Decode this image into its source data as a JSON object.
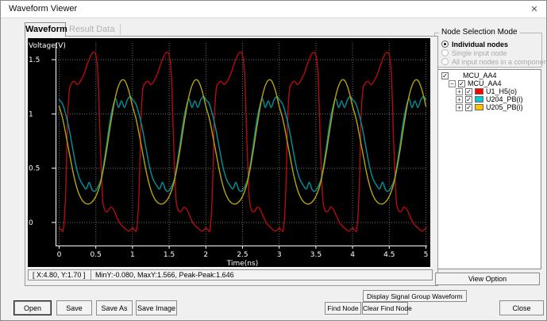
{
  "window": {
    "title": "Waveform Viewer",
    "close_icon": "✕"
  },
  "tabs": {
    "waveform": "Waveform",
    "result_data": "Result Data"
  },
  "chart_data": {
    "type": "line",
    "title": "",
    "xlabel": "Time(ns)",
    "ylabel": "Voltage(V)",
    "xlim": [
      0,
      5
    ],
    "ylim": [
      -0.2,
      1.66
    ],
    "xticks": [
      0,
      0.5,
      1,
      1.5,
      2,
      2.5,
      3,
      3.5,
      4,
      4.5,
      5
    ],
    "yticks": [
      0,
      0.5,
      1,
      1.5
    ],
    "bg_color": "#000000",
    "grid_color": "#6e6e6e",
    "axis_color": "#ffffff",
    "grid": "dotted",
    "legend_position": "none",
    "period_ns": 1,
    "periods": 5,
    "series": [
      {
        "name": "U1_H5(o)",
        "color": "#b40b10",
        "period_profile": [
          [
            0,
            -0.05
          ],
          [
            0.03,
            -0.07
          ],
          [
            0.06,
            -0.05
          ],
          [
            0.09,
            0.3
          ],
          [
            0.115,
            0.95
          ],
          [
            0.14,
            1.22
          ],
          [
            0.17,
            1.28
          ],
          [
            0.21,
            1.3
          ],
          [
            0.25,
            1.27
          ],
          [
            0.29,
            1.3
          ],
          [
            0.34,
            1.37
          ],
          [
            0.39,
            1.47
          ],
          [
            0.44,
            1.55
          ],
          [
            0.47,
            1.566
          ],
          [
            0.5,
            1.54
          ],
          [
            0.53,
            1.35
          ],
          [
            0.56,
            0.75
          ],
          [
            0.59,
            0.25
          ],
          [
            0.62,
            0.12
          ],
          [
            0.66,
            0.1
          ],
          [
            0.7,
            0.14
          ],
          [
            0.74,
            0.12
          ],
          [
            0.78,
            0.06
          ],
          [
            0.83,
            -0.01
          ],
          [
            0.89,
            -0.05
          ],
          [
            0.95,
            -0.08
          ],
          [
            1,
            -0.05
          ]
        ]
      },
      {
        "name": "U204_PB(i)",
        "color": "#00939b",
        "period_profile": [
          [
            0,
            1.13
          ],
          [
            0.04,
            1.1
          ],
          [
            0.08,
            1.02
          ],
          [
            0.13,
            0.88
          ],
          [
            0.18,
            0.7
          ],
          [
            0.23,
            0.52
          ],
          [
            0.28,
            0.4
          ],
          [
            0.33,
            0.34
          ],
          [
            0.37,
            0.31
          ],
          [
            0.41,
            0.37
          ],
          [
            0.45,
            0.3
          ],
          [
            0.49,
            0.29
          ],
          [
            0.53,
            0.33
          ],
          [
            0.57,
            0.4
          ],
          [
            0.61,
            0.55
          ],
          [
            0.65,
            0.73
          ],
          [
            0.69,
            0.92
          ],
          [
            0.73,
            1.06
          ],
          [
            0.77,
            1.14
          ],
          [
            0.81,
            1.06
          ],
          [
            0.85,
            1.12
          ],
          [
            0.89,
            1.06
          ],
          [
            0.93,
            1.13
          ],
          [
            0.97,
            1.16
          ],
          [
            1,
            1.13
          ]
        ]
      },
      {
        "name": "U205_PB(i)",
        "color": "#b3a40a",
        "period_profile": [
          [
            0,
            1.07
          ],
          [
            0.05,
            0.95
          ],
          [
            0.1,
            0.78
          ],
          [
            0.15,
            0.6
          ],
          [
            0.2,
            0.43
          ],
          [
            0.25,
            0.3
          ],
          [
            0.3,
            0.22
          ],
          [
            0.35,
            0.18
          ],
          [
            0.4,
            0.17
          ],
          [
            0.45,
            0.19
          ],
          [
            0.5,
            0.24
          ],
          [
            0.55,
            0.33
          ],
          [
            0.6,
            0.48
          ],
          [
            0.65,
            0.68
          ],
          [
            0.7,
            0.9
          ],
          [
            0.75,
            1.1
          ],
          [
            0.8,
            1.24
          ],
          [
            0.85,
            1.31
          ],
          [
            0.9,
            1.3
          ],
          [
            0.95,
            1.21
          ],
          [
            1,
            1.07
          ]
        ]
      }
    ]
  },
  "status": {
    "cursor": "[ X:4.80, Y:1.70 ]",
    "summary": "MinY:-0.080, MaxY:1.566, Peak-Peak:1.646"
  },
  "node_selection": {
    "title": "Node Selection Mode",
    "options": [
      {
        "label": "Individual nodes",
        "selected": true,
        "enabled": true
      },
      {
        "label": "Single input node",
        "selected": false,
        "enabled": false
      },
      {
        "label": "All input nodes in a component",
        "selected": false,
        "enabled": false
      }
    ]
  },
  "tree": {
    "items": [
      {
        "label": "MCU_AA4",
        "level": 0,
        "expander": null,
        "checked": true,
        "swatch": null
      },
      {
        "label": "MCU_AA4",
        "level": 1,
        "expander": "minus",
        "checked": true,
        "swatch": null
      },
      {
        "label": "U1_H5(o)",
        "level": 2,
        "expander": "plus",
        "checked": true,
        "swatch": "#ff0000"
      },
      {
        "label": "U204_PB(i)",
        "level": 2,
        "expander": "plus",
        "checked": true,
        "swatch": "#00c8d2"
      },
      {
        "label": "U205_PB(i)",
        "level": 2,
        "expander": "plus",
        "checked": true,
        "swatch": "#ffc000"
      }
    ],
    "expander_glyphs": {
      "minus": "−",
      "plus": "+"
    },
    "check_glyph": "✓"
  },
  "buttons": {
    "view_option": "View Option",
    "open": "Open",
    "save": "Save",
    "save_as": "Save As",
    "save_image": "Save Image",
    "display_signal": "Display Signal Group Waveform",
    "find_node": "Find Node",
    "clear_find_node": "Clear Find Node",
    "close": "Close"
  }
}
